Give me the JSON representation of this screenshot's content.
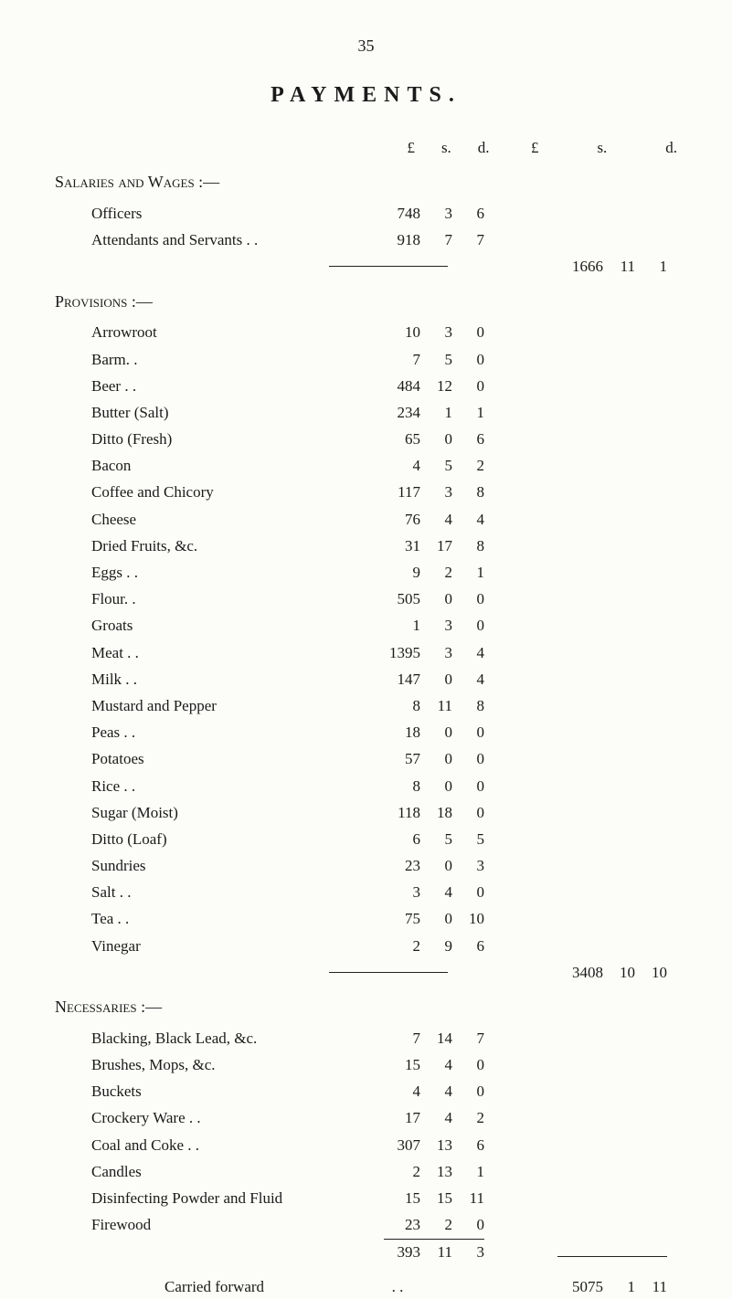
{
  "page_number": "35",
  "title": "PAYMENTS.",
  "currency_header": {
    "p": "£",
    "s": "s.",
    "d": "d."
  },
  "sections": {
    "salaries": {
      "header": "Salaries and Wages :—",
      "items": [
        {
          "label": "Officers",
          "p": "748",
          "s": "3",
          "d": "6"
        },
        {
          "label": "Attendants and Servants . .",
          "p": "918",
          "s": "7",
          "d": "7"
        }
      ],
      "subtotal": {
        "p": "1666",
        "s": "11",
        "d": "1"
      }
    },
    "provisions": {
      "header": "Provisions :—",
      "items": [
        {
          "label": "Arrowroot",
          "p": "10",
          "s": "3",
          "d": "0"
        },
        {
          "label": "Barm. .",
          "p": "7",
          "s": "5",
          "d": "0"
        },
        {
          "label": "Beer . .",
          "p": "484",
          "s": "12",
          "d": "0"
        },
        {
          "label": "Butter (Salt)",
          "p": "234",
          "s": "1",
          "d": "1"
        },
        {
          "label": "Ditto (Fresh)",
          "p": "65",
          "s": "0",
          "d": "6"
        },
        {
          "label": "Bacon",
          "p": "4",
          "s": "5",
          "d": "2"
        },
        {
          "label": "Coffee and Chicory",
          "p": "117",
          "s": "3",
          "d": "8"
        },
        {
          "label": "Cheese",
          "p": "76",
          "s": "4",
          "d": "4"
        },
        {
          "label": "Dried Fruits, &c.",
          "p": "31",
          "s": "17",
          "d": "8"
        },
        {
          "label": "Eggs . .",
          "p": "9",
          "s": "2",
          "d": "1"
        },
        {
          "label": "Flour. .",
          "p": "505",
          "s": "0",
          "d": "0"
        },
        {
          "label": "Groats",
          "p": "1",
          "s": "3",
          "d": "0"
        },
        {
          "label": "Meat . .",
          "p": "1395",
          "s": "3",
          "d": "4"
        },
        {
          "label": "Milk . .",
          "p": "147",
          "s": "0",
          "d": "4"
        },
        {
          "label": "Mustard and Pepper",
          "p": "8",
          "s": "11",
          "d": "8"
        },
        {
          "label": "Peas . .",
          "p": "18",
          "s": "0",
          "d": "0"
        },
        {
          "label": "Potatoes",
          "p": "57",
          "s": "0",
          "d": "0"
        },
        {
          "label": "Rice . .",
          "p": "8",
          "s": "0",
          "d": "0"
        },
        {
          "label": "Sugar (Moist)",
          "p": "118",
          "s": "18",
          "d": "0"
        },
        {
          "label": "Ditto (Loaf)",
          "p": "6",
          "s": "5",
          "d": "5"
        },
        {
          "label": "Sundries",
          "p": "23",
          "s": "0",
          "d": "3"
        },
        {
          "label": "Salt . .",
          "p": "3",
          "s": "4",
          "d": "0"
        },
        {
          "label": "Tea . .",
          "p": "75",
          "s": "0",
          "d": "10"
        },
        {
          "label": "Vinegar",
          "p": "2",
          "s": "9",
          "d": "6"
        }
      ],
      "subtotal": {
        "p": "3408",
        "s": "10",
        "d": "10"
      }
    },
    "necessaries": {
      "header": "Necessaries :—",
      "items": [
        {
          "label": "Blacking, Black Lead, &c.",
          "p": "7",
          "s": "14",
          "d": "7"
        },
        {
          "label": "Brushes, Mops, &c.",
          "p": "15",
          "s": "4",
          "d": "0"
        },
        {
          "label": "Buckets",
          "p": "4",
          "s": "4",
          "d": "0"
        },
        {
          "label": "Crockery Ware . .",
          "p": "17",
          "s": "4",
          "d": "2"
        },
        {
          "label": "Coal and Coke . .",
          "p": "307",
          "s": "13",
          "d": "6"
        },
        {
          "label": "Candles",
          "p": "2",
          "s": "13",
          "d": "1"
        },
        {
          "label": "Disinfecting Powder and Fluid",
          "p": "15",
          "s": "15",
          "d": "11"
        },
        {
          "label": "Firewood",
          "p": "23",
          "s": "2",
          "d": "0"
        }
      ],
      "section_total": {
        "p": "393",
        "s": "11",
        "d": "3"
      }
    }
  },
  "carried_forward": {
    "label": "Carried forward",
    "amount": {
      "p": "5075",
      "s": "1",
      "d": "11"
    }
  },
  "styling": {
    "background_color": "#fcfcf8",
    "text_color": "#1a1a1a",
    "font_family": "Georgia, 'Times New Roman', serif",
    "title_fontsize": 24,
    "body_fontsize": 17,
    "title_letter_spacing": 8
  }
}
